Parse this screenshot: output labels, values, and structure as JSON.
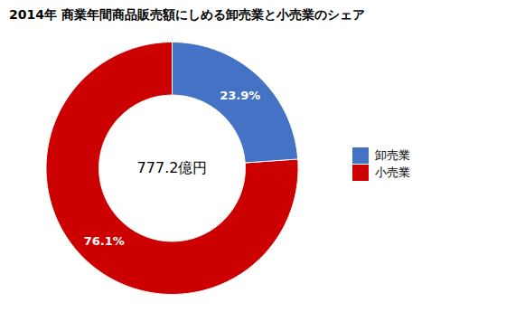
{
  "chart_data": {
    "type": "pie",
    "title": "2014年 商業年間商品販売額にしめる卸売業と小売業のシェア",
    "annotations": [
      "777.2億円"
    ],
    "categories": [
      "卸売業",
      "小売業"
    ],
    "values": [
      23.9,
      76.1
    ],
    "value_labels": [
      "23.9%",
      "76.1%"
    ],
    "colors": [
      "#4472C4",
      "#CC0000"
    ],
    "data_labels": true,
    "legend": "right"
  }
}
